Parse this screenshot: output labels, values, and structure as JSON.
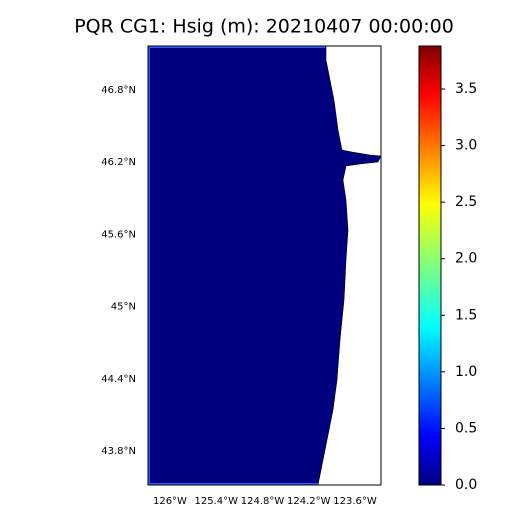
{
  "chart_data": {
    "type": "map",
    "title": "PQR CG1: Hsig (m): 20210407 00:00:00",
    "xlim": [
      -126.285,
      -123.263
    ],
    "ylim": [
      43.517,
      47.166
    ],
    "xticks": [
      {
        "value": -126,
        "label": "126°W"
      },
      {
        "value": -125.4,
        "label": "125.4°W"
      },
      {
        "value": -124.8,
        "label": "124.8°W"
      },
      {
        "value": -124.2,
        "label": "124.2°W"
      },
      {
        "value": -123.6,
        "label": "123.6°W"
      }
    ],
    "yticks": [
      {
        "value": 43.8,
        "label": "43.8°N"
      },
      {
        "value": 44.4,
        "label": "44.4°N"
      },
      {
        "value": 45,
        "label": "45°N"
      },
      {
        "value": 45.6,
        "label": "45.6°N"
      },
      {
        "value": 46.2,
        "label": "46.2°N"
      },
      {
        "value": 46.8,
        "label": "46.8°N"
      }
    ],
    "clim": [
      0,
      3.88
    ],
    "cticks": [
      {
        "value": 0,
        "label": "0.0"
      },
      0.5,
      {
        "value": 1,
        "label": "1.0"
      },
      1.5,
      {
        "value": 2,
        "label": "2.0"
      },
      2.5,
      {
        "value": 3,
        "label": "3.0"
      },
      3.5
    ]
  }
}
